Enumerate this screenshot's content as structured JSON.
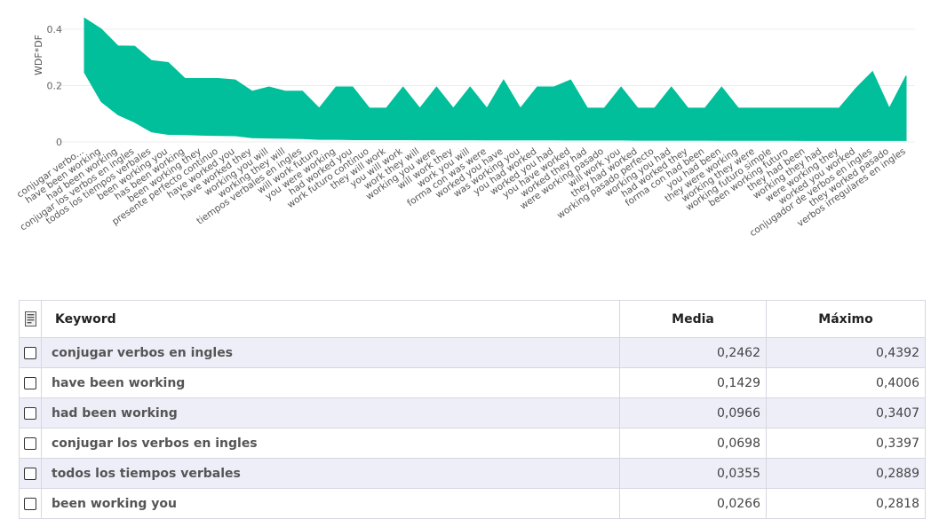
{
  "chart_data": {
    "type": "area",
    "ylabel": "WDF*DF",
    "ylim": [
      0,
      0.45
    ],
    "yticks": [
      "0",
      "0.2",
      "0.4"
    ],
    "ytick_values": [
      0,
      0.2,
      0.4
    ],
    "grid": true,
    "accent_color": "#00bf9a",
    "categories": [
      "conjugar verbo...",
      "have been working",
      "had been working",
      "conjugar los verbos en ingles",
      "todos los tiempos verbales",
      "been working you",
      "has been working",
      "been working they",
      "presente perfecto continuo",
      "have worked you",
      "have worked they",
      "working you will",
      "working they will",
      "tiempos verbales en ingles",
      "will work futuro",
      "you were working",
      "had worked you",
      "work futuro continuo",
      "they will work",
      "you will work",
      "work they will",
      "working you were",
      "will work they",
      "work you will",
      "forma con was were",
      "worked you have",
      "was working you",
      "you had worked",
      "worked you had",
      "you have worked",
      "worked they had",
      "were working pasado",
      "will work you",
      "they had worked",
      "working pasado perfecto",
      "working you had",
      "had worked they",
      "forma con had been",
      "you had been",
      "they were working",
      "working they were",
      "working futuro simple",
      "been working futuro",
      "they had been",
      "working they had",
      "were working they",
      "worked you worked",
      "conjugador de verbos en ingles",
      "they worked pasado",
      "verbos irregulares en ingles"
    ],
    "series": [
      {
        "name": "Media",
        "values": [
          0.2462,
          0.1429,
          0.0966,
          0.0698,
          0.0355,
          0.0266,
          0.026,
          0.024,
          0.023,
          0.022,
          0.015,
          0.014,
          0.013,
          0.012,
          0.009,
          0.009,
          0.008,
          0.008,
          0.008,
          0.008,
          0.0075,
          0.0075,
          0.0075,
          0.0075,
          0.007,
          0.007,
          0.007,
          0.007,
          0.007,
          0.0065,
          0.0065,
          0.0065,
          0.0065,
          0.006,
          0.006,
          0.006,
          0.006,
          0.006,
          0.0055,
          0.0055,
          0.0055,
          0.0055,
          0.0055,
          0.005,
          0.005,
          0.005,
          0.005,
          0.005,
          0.005,
          0.005
        ]
      },
      {
        "name": "Máximo",
        "values": [
          0.4392,
          0.4006,
          0.3407,
          0.3397,
          0.2889,
          0.2818,
          0.225,
          0.225,
          0.225,
          0.22,
          0.18,
          0.195,
          0.18,
          0.18,
          0.12,
          0.195,
          0.195,
          0.12,
          0.12,
          0.195,
          0.12,
          0.195,
          0.12,
          0.195,
          0.12,
          0.22,
          0.12,
          0.195,
          0.195,
          0.22,
          0.12,
          0.12,
          0.195,
          0.12,
          0.12,
          0.195,
          0.12,
          0.12,
          0.195,
          0.12,
          0.12,
          0.12,
          0.12,
          0.12,
          0.12,
          0.12,
          0.19,
          0.25,
          0.12,
          0.235
        ]
      }
    ]
  },
  "table": {
    "headers": {
      "keyword": "Keyword",
      "media": "Media",
      "maximo": "Máximo"
    },
    "rows": [
      {
        "keyword": "conjugar verbos en ingles",
        "media": "0,2462",
        "maximo": "0,4392"
      },
      {
        "keyword": "have been working",
        "media": "0,1429",
        "maximo": "0,4006"
      },
      {
        "keyword": "had been working",
        "media": "0,0966",
        "maximo": "0,3407"
      },
      {
        "keyword": "conjugar los verbos en ingles",
        "media": "0,0698",
        "maximo": "0,3397"
      },
      {
        "keyword": "todos los tiempos verbales",
        "media": "0,0355",
        "maximo": "0,2889"
      },
      {
        "keyword": "been working you",
        "media": "0,0266",
        "maximo": "0,2818"
      }
    ]
  }
}
